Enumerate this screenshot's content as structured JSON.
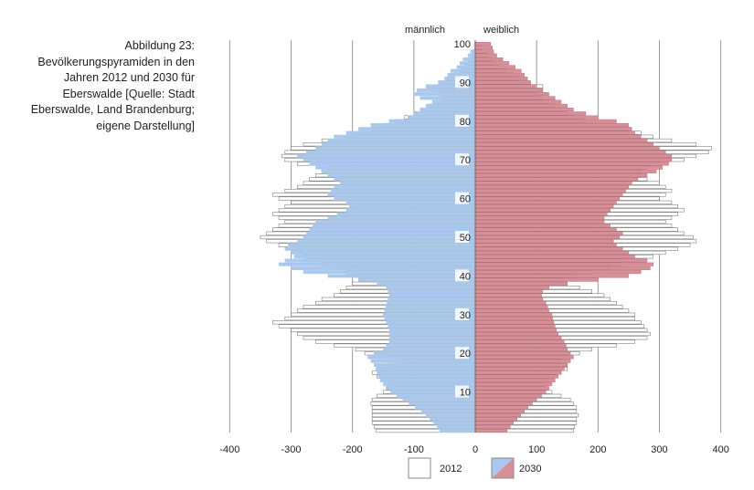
{
  "caption": {
    "lines": [
      "Abbildung 23:",
      "Bevölkerungspyramiden in den",
      "Jahren 2012 und 2030 für",
      "Eberswalde [Quelle: Stadt",
      "Eberswalde, Land Brandenburg;",
      "eigene Darstellung]"
    ]
  },
  "chart_data": {
    "type": "bar",
    "orientation": "horizontal",
    "layout": "population-pyramid",
    "header_left": "männlich",
    "header_right": "weiblich",
    "xlim": [
      -400,
      400
    ],
    "x_ticks": [
      -400,
      -300,
      -200,
      -100,
      0,
      100,
      200,
      300,
      400
    ],
    "age_ticks": [
      10,
      20,
      30,
      40,
      50,
      60,
      70,
      80,
      90,
      100
    ],
    "ages": [
      0,
      1,
      2,
      3,
      4,
      5,
      6,
      7,
      8,
      9,
      10,
      11,
      12,
      13,
      14,
      15,
      16,
      17,
      18,
      19,
      20,
      21,
      22,
      23,
      24,
      25,
      26,
      27,
      28,
      29,
      30,
      31,
      32,
      33,
      34,
      35,
      36,
      37,
      38,
      39,
      40,
      41,
      42,
      43,
      44,
      45,
      46,
      47,
      48,
      49,
      50,
      51,
      52,
      53,
      54,
      55,
      56,
      57,
      58,
      59,
      60,
      61,
      62,
      63,
      64,
      65,
      66,
      67,
      68,
      69,
      70,
      71,
      72,
      73,
      74,
      75,
      76,
      77,
      78,
      79,
      80,
      81,
      82,
      83,
      84,
      85,
      86,
      87,
      88,
      89,
      90,
      91,
      92,
      93,
      94,
      95,
      96,
      97,
      98,
      99,
      100
    ],
    "grid": true,
    "legend_position": "bottom",
    "series": [
      {
        "name": "2012",
        "color": "#ffffff",
        "stroke": "#7f7f7f",
        "male": [
          -162,
          -165,
          -168,
          -168,
          -168,
          -168,
          -168,
          -170,
          -168,
          -160,
          -150,
          -145,
          -140,
          -150,
          -160,
          -168,
          -160,
          -140,
          -120,
          -150,
          -180,
          -195,
          -230,
          -260,
          -280,
          -290,
          -300,
          -320,
          -330,
          -310,
          -300,
          -290,
          -280,
          -260,
          -250,
          -230,
          -220,
          -210,
          -200,
          -190,
          -200,
          -210,
          -230,
          -250,
          -270,
          -280,
          -290,
          -300,
          -320,
          -340,
          -350,
          -340,
          -330,
          -320,
          -310,
          -320,
          -330,
          -320,
          -310,
          -300,
          -320,
          -330,
          -310,
          -290,
          -280,
          -270,
          -260,
          -250,
          -240,
          -290,
          -310,
          -315,
          -310,
          -300,
          -280,
          -250,
          -210,
          -190,
          -170,
          -150,
          -130,
          -115,
          -100,
          -85,
          -75,
          -65,
          -55,
          -60,
          -70,
          -80,
          -60,
          -45,
          -35,
          -25,
          -18,
          -12,
          -8,
          -5,
          -3,
          -2,
          -1
        ],
        "female": [
          160,
          162,
          165,
          165,
          168,
          165,
          165,
          160,
          155,
          140,
          125,
          115,
          110,
          120,
          130,
          140,
          150,
          150,
          140,
          150,
          170,
          190,
          230,
          260,
          280,
          285,
          280,
          275,
          270,
          260,
          260,
          250,
          240,
          230,
          220,
          210,
          190,
          170,
          150,
          140,
          160,
          190,
          220,
          240,
          270,
          290,
          310,
          330,
          350,
          360,
          355,
          340,
          330,
          320,
          310,
          320,
          330,
          340,
          330,
          320,
          300,
          310,
          320,
          310,
          300,
          280,
          270,
          270,
          280,
          300,
          340,
          360,
          380,
          385,
          360,
          320,
          290,
          270,
          250,
          230,
          180,
          160,
          150,
          140,
          130,
          120,
          110,
          100,
          110,
          110,
          90,
          70,
          60,
          50,
          40,
          30,
          25,
          20,
          15,
          10,
          5
        ]
      },
      {
        "name": "2030",
        "male_color": "#a8c8ee",
        "female_color": "#d89098",
        "stroke": "#888888",
        "male": [
          -58,
          -62,
          -68,
          -74,
          -80,
          -88,
          -98,
          -108,
          -118,
          -128,
          -138,
          -145,
          -150,
          -155,
          -158,
          -160,
          -162,
          -165,
          -170,
          -175,
          -165,
          -150,
          -145,
          -140,
          -140,
          -140,
          -140,
          -142,
          -145,
          -148,
          -150,
          -148,
          -146,
          -144,
          -142,
          -140,
          -142,
          -145,
          -160,
          -190,
          -240,
          -280,
          -300,
          -320,
          -310,
          -295,
          -300,
          -310,
          -305,
          -290,
          -280,
          -275,
          -270,
          -265,
          -260,
          -240,
          -225,
          -210,
          -205,
          -210,
          -230,
          -240,
          -235,
          -230,
          -220,
          -230,
          -240,
          -250,
          -260,
          -270,
          -280,
          -290,
          -275,
          -260,
          -250,
          -240,
          -230,
          -210,
          -190,
          -170,
          -140,
          -110,
          -100,
          -90,
          -80,
          -70,
          -90,
          -100,
          -95,
          -80,
          -60,
          -50,
          -45,
          -40,
          -30,
          -25,
          -20,
          -12,
          -8,
          -6,
          -4
        ],
        "female": [
          52,
          57,
          62,
          68,
          74,
          80,
          86,
          93,
          100,
          108,
          115,
          120,
          125,
          130,
          135,
          140,
          145,
          150,
          155,
          160,
          155,
          150,
          148,
          145,
          140,
          135,
          132,
          130,
          128,
          126,
          125,
          120,
          118,
          115,
          110,
          108,
          110,
          120,
          150,
          200,
          250,
          270,
          285,
          290,
          280,
          260,
          250,
          240,
          230,
          225,
          235,
          240,
          230,
          220,
          210,
          210,
          215,
          220,
          225,
          230,
          235,
          240,
          245,
          250,
          255,
          265,
          280,
          295,
          305,
          315,
          320,
          320,
          310,
          300,
          290,
          280,
          270,
          260,
          255,
          250,
          230,
          200,
          180,
          160,
          150,
          140,
          130,
          120,
          110,
          100,
          90,
          85,
          80,
          75,
          65,
          55,
          45,
          35,
          30,
          28,
          25
        ]
      }
    ]
  },
  "legend": {
    "items": [
      "2012",
      "2030"
    ]
  }
}
